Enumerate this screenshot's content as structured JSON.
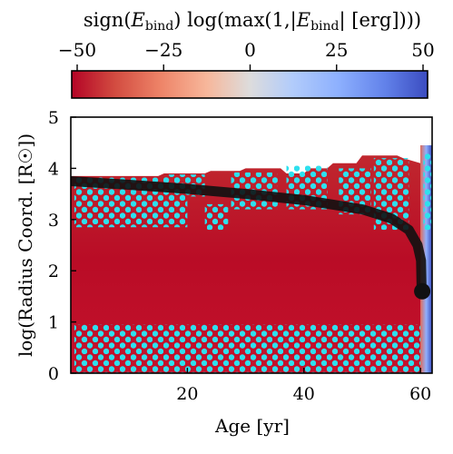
{
  "chart_data": {
    "type": "heatmap",
    "colorbar": {
      "title": "sign(E_bind) log(max(1,|E_bind| [erg])))",
      "title_parts": {
        "p1": "sign(",
        "p2": "E",
        "p3": "bind",
        "p4": ") log(max(1,|",
        "p5": "E",
        "p6": "bind",
        "p7": "| [erg])))"
      },
      "range": [
        -50,
        50
      ],
      "ticks": [
        -50,
        -25,
        0,
        25,
        50
      ],
      "tick_labels": [
        "−50",
        "−25",
        "0",
        "25",
        "50"
      ],
      "colormap": "coolwarm_r"
    },
    "xlabel": "Age [yr]",
    "ylabel": "log(Radius Coord. [R☉])",
    "xlim": [
      0,
      62
    ],
    "ylim": [
      0,
      5
    ],
    "xticks": [
      20,
      40,
      60
    ],
    "xtick_labels": [
      "20",
      "40",
      "60"
    ],
    "yticks": [
      0,
      1,
      2,
      3,
      4,
      5
    ],
    "ytick_labels": [
      "0",
      "1",
      "2",
      "3",
      "4",
      "5"
    ],
    "star_outline": [
      {
        "x": 0,
        "y": 3.85
      },
      {
        "x": 15,
        "y": 3.85
      },
      {
        "x": 16,
        "y": 3.9
      },
      {
        "x": 23,
        "y": 3.9
      },
      {
        "x": 24,
        "y": 3.95
      },
      {
        "x": 29,
        "y": 3.95
      },
      {
        "x": 30,
        "y": 4.0
      },
      {
        "x": 36,
        "y": 4.0
      },
      {
        "x": 37,
        "y": 3.9
      },
      {
        "x": 40,
        "y": 3.9
      },
      {
        "x": 41,
        "y": 4.0
      },
      {
        "x": 44,
        "y": 4.0
      },
      {
        "x": 45,
        "y": 4.1
      },
      {
        "x": 49,
        "y": 4.1
      },
      {
        "x": 50,
        "y": 4.25
      },
      {
        "x": 56,
        "y": 4.25
      },
      {
        "x": 57,
        "y": 4.2
      },
      {
        "x": 60,
        "y": 4.1
      },
      {
        "x": 61,
        "y": 4.4
      },
      {
        "x": 62,
        "y": 4.45
      }
    ],
    "radius_track": [
      {
        "x": 0,
        "y": 3.75
      },
      {
        "x": 10,
        "y": 3.68
      },
      {
        "x": 20,
        "y": 3.6
      },
      {
        "x": 30,
        "y": 3.5
      },
      {
        "x": 40,
        "y": 3.38
      },
      {
        "x": 50,
        "y": 3.2
      },
      {
        "x": 55,
        "y": 3.02
      },
      {
        "x": 58,
        "y": 2.8
      },
      {
        "x": 59.5,
        "y": 2.5
      },
      {
        "x": 60.1,
        "y": 2.2
      },
      {
        "x": 60.2,
        "y": 1.62
      }
    ],
    "endpoint": {
      "x": 60.3,
      "y": 1.6
    },
    "convective_zones": [
      {
        "x0": 0.6,
        "x1": 20,
        "y0": 2.85,
        "y1": 3.82
      },
      {
        "x0": 23,
        "x1": 27,
        "y0": 2.8,
        "y1": 3.3
      },
      {
        "x0": 16,
        "x1": 23,
        "y0": 3.45,
        "y1": 3.88
      },
      {
        "x0": 27.5,
        "x1": 35.5,
        "y0": 3.2,
        "y1": 3.92
      },
      {
        "x0": 37,
        "x1": 44,
        "y0": 3.2,
        "y1": 4.05
      },
      {
        "x0": 46,
        "x1": 51.5,
        "y0": 3.1,
        "y1": 4.0
      },
      {
        "x0": 52,
        "x1": 58,
        "y0": 2.8,
        "y1": 4.2
      },
      {
        "x0": 60.5,
        "x1": 62,
        "y0": 2.8,
        "y1": 4.3
      },
      {
        "x0": 0.6,
        "x1": 60,
        "y0": 0,
        "y1": 0.95
      }
    ]
  }
}
